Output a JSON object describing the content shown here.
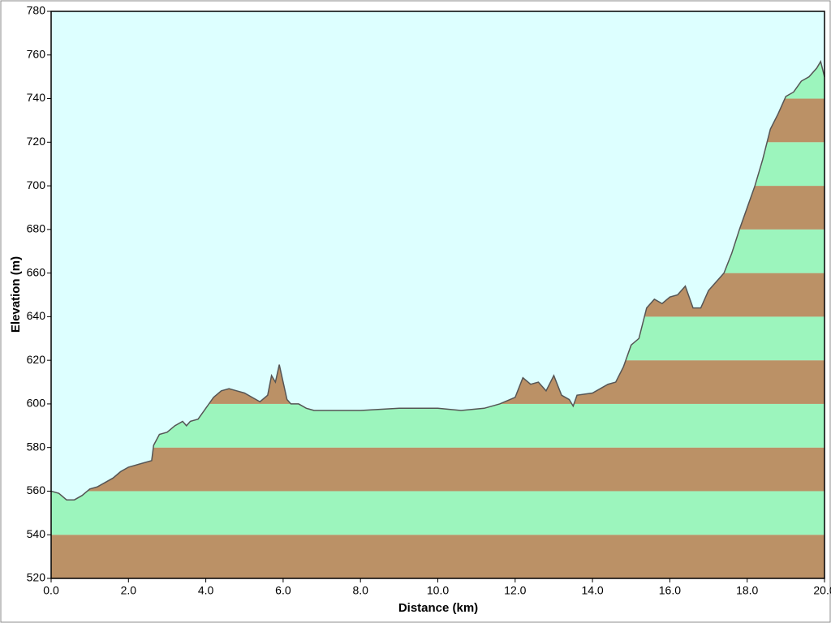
{
  "chart_data": {
    "type": "area",
    "xlabel": "Distance   (km)",
    "ylabel": "Elevation (m)",
    "x": [
      0,
      0.2,
      0.4,
      0.6,
      0.8,
      1.0,
      1.2,
      1.4,
      1.6,
      1.8,
      2.0,
      2.2,
      2.4,
      2.6,
      2.65,
      2.8,
      3.0,
      3.2,
      3.4,
      3.5,
      3.6,
      3.8,
      4.0,
      4.2,
      4.4,
      4.6,
      4.8,
      5.0,
      5.2,
      5.4,
      5.6,
      5.7,
      5.8,
      5.9,
      6.0,
      6.1,
      6.2,
      6.4,
      6.6,
      6.8,
      7.0,
      8.0,
      9.0,
      10.0,
      10.6,
      11.2,
      11.6,
      12.0,
      12.2,
      12.4,
      12.6,
      12.8,
      13.0,
      13.2,
      13.4,
      13.5,
      13.6,
      14.0,
      14.4,
      14.6,
      14.8,
      15.0,
      15.2,
      15.4,
      15.6,
      15.8,
      16.0,
      16.2,
      16.4,
      16.6,
      16.8,
      17.0,
      17.2,
      17.4,
      17.6,
      17.8,
      18.0,
      18.2,
      18.4,
      18.6,
      18.8,
      19.0,
      19.2,
      19.4,
      19.6,
      19.8,
      19.9,
      20.0
    ],
    "values": [
      560,
      559,
      556,
      556,
      558,
      561,
      562,
      564,
      566,
      569,
      571,
      572,
      573,
      574,
      581,
      586,
      587,
      590,
      592,
      590,
      592,
      593,
      598,
      603,
      606,
      607,
      606,
      605,
      603,
      601,
      604,
      613,
      610,
      618,
      610,
      602,
      600,
      600,
      598,
      597,
      597,
      597,
      598,
      598,
      597,
      598,
      600,
      603,
      612,
      609,
      610,
      606,
      613,
      604,
      602,
      599,
      604,
      605,
      609,
      610,
      617,
      627,
      630,
      644,
      648,
      646,
      649,
      650,
      654,
      644,
      644,
      652,
      656,
      660,
      669,
      680,
      690,
      700,
      712,
      726,
      733,
      741,
      743,
      748,
      750,
      754,
      757,
      750
    ],
    "xlim": [
      0,
      20
    ],
    "ylim": [
      520,
      780
    ],
    "xticks": [
      {
        "value": 0,
        "label": "0.0"
      },
      {
        "value": 2,
        "label": "2.0"
      },
      {
        "value": 4,
        "label": "4.0"
      },
      {
        "value": 6,
        "label": "6.0"
      },
      {
        "value": 8,
        "label": "8.0"
      },
      {
        "value": 10,
        "label": "10.0"
      },
      {
        "value": 12,
        "label": "12.0"
      },
      {
        "value": 14,
        "label": "14.0"
      },
      {
        "value": 16,
        "label": "16.0"
      },
      {
        "value": 18,
        "label": "18.0"
      },
      {
        "value": 20,
        "label": "20.0"
      }
    ],
    "yticks": [
      520,
      540,
      560,
      580,
      600,
      620,
      640,
      660,
      680,
      700,
      720,
      740,
      760,
      780
    ],
    "band_colors": [
      "#bb9166",
      "#9cf5bd"
    ],
    "line_color": "#555555",
    "background": "#ddffff"
  }
}
